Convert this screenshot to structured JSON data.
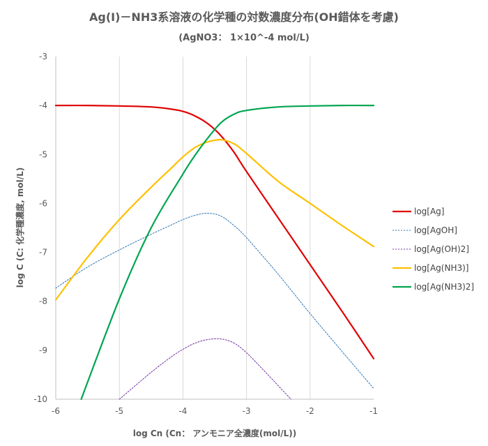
{
  "chart_data": {
    "type": "line",
    "title": "Ag(I)－NH3系溶液の化学種の対数濃度分布(OH錯体を考慮)",
    "subtitle": "(AgNO3： 1×10^-4 mol/L)",
    "xlabel": "log Cn  (Cn： アンモニア全濃度(mol/L))",
    "ylabel": "log C  (C: 化学種濃度, mol/L)",
    "xlim": [
      -6,
      -1
    ],
    "ylim": [
      -10,
      -3
    ],
    "x_ticks": [
      "-6",
      "-5",
      "-4",
      "-3",
      "-2",
      "-1"
    ],
    "y_ticks": [
      "-3",
      "-4",
      "-5",
      "-6",
      "-7",
      "-8",
      "-9",
      "-10"
    ],
    "grid": "vertical",
    "legend_position": "right",
    "series": [
      {
        "name": "log[Ag]",
        "color": "#e00000",
        "style": "solid",
        "points": [
          [
            -6,
            -4.0
          ],
          [
            -5.5,
            -4.0
          ],
          [
            -5.0,
            -4.01
          ],
          [
            -4.5,
            -4.03
          ],
          [
            -4.2,
            -4.07
          ],
          [
            -4.0,
            -4.12
          ],
          [
            -3.8,
            -4.22
          ],
          [
            -3.6,
            -4.38
          ],
          [
            -3.4,
            -4.62
          ],
          [
            -3.2,
            -4.95
          ],
          [
            -3.0,
            -5.35
          ],
          [
            -2.5,
            -6.3
          ],
          [
            -2.0,
            -7.25
          ],
          [
            -1.5,
            -8.2
          ],
          [
            -1.0,
            -9.17
          ]
        ]
      },
      {
        "name": "log[AgOH]",
        "color": "#2e75b6",
        "style": "dotted",
        "points": [
          [
            -6,
            -7.73
          ],
          [
            -5.5,
            -7.3
          ],
          [
            -5.0,
            -6.95
          ],
          [
            -4.5,
            -6.63
          ],
          [
            -4.2,
            -6.45
          ],
          [
            -4.0,
            -6.33
          ],
          [
            -3.8,
            -6.24
          ],
          [
            -3.6,
            -6.2
          ],
          [
            -3.4,
            -6.26
          ],
          [
            -3.2,
            -6.45
          ],
          [
            -3.0,
            -6.7
          ],
          [
            -2.5,
            -7.45
          ],
          [
            -2.0,
            -8.25
          ],
          [
            -1.5,
            -9.02
          ],
          [
            -1.0,
            -9.78
          ]
        ]
      },
      {
        "name": "log[Ag(OH)2]",
        "color": "#7030a0",
        "style": "dotted",
        "points": [
          [
            -5.0,
            -10.0
          ],
          [
            -4.5,
            -9.45
          ],
          [
            -4.2,
            -9.15
          ],
          [
            -4.0,
            -8.98
          ],
          [
            -3.8,
            -8.85
          ],
          [
            -3.6,
            -8.78
          ],
          [
            -3.4,
            -8.77
          ],
          [
            -3.2,
            -8.85
          ],
          [
            -3.0,
            -9.05
          ],
          [
            -2.7,
            -9.45
          ],
          [
            -2.3,
            -10.0
          ]
        ]
      },
      {
        "name": "log[Ag(NH3)]",
        "color": "#ffc000",
        "style": "solid",
        "points": [
          [
            -6,
            -7.97
          ],
          [
            -5.5,
            -7.1
          ],
          [
            -5.0,
            -6.33
          ],
          [
            -4.5,
            -5.67
          ],
          [
            -4.2,
            -5.3
          ],
          [
            -4.0,
            -5.05
          ],
          [
            -3.8,
            -4.85
          ],
          [
            -3.6,
            -4.74
          ],
          [
            -3.4,
            -4.7
          ],
          [
            -3.2,
            -4.78
          ],
          [
            -3.0,
            -4.98
          ],
          [
            -2.5,
            -5.55
          ],
          [
            -2.0,
            -6.0
          ],
          [
            -1.5,
            -6.45
          ],
          [
            -1.0,
            -6.88
          ]
        ]
      },
      {
        "name": "log[Ag(NH3)2]",
        "color": "#00a550",
        "style": "solid",
        "points": [
          [
            -5.6,
            -10.0
          ],
          [
            -5.0,
            -7.95
          ],
          [
            -4.5,
            -6.5
          ],
          [
            -4.0,
            -5.4
          ],
          [
            -3.8,
            -5.0
          ],
          [
            -3.6,
            -4.65
          ],
          [
            -3.4,
            -4.35
          ],
          [
            -3.2,
            -4.18
          ],
          [
            -3.0,
            -4.1
          ],
          [
            -2.5,
            -4.03
          ],
          [
            -2.0,
            -4.01
          ],
          [
            -1.5,
            -4.0
          ],
          [
            -1.0,
            -4.0
          ]
        ]
      }
    ]
  }
}
